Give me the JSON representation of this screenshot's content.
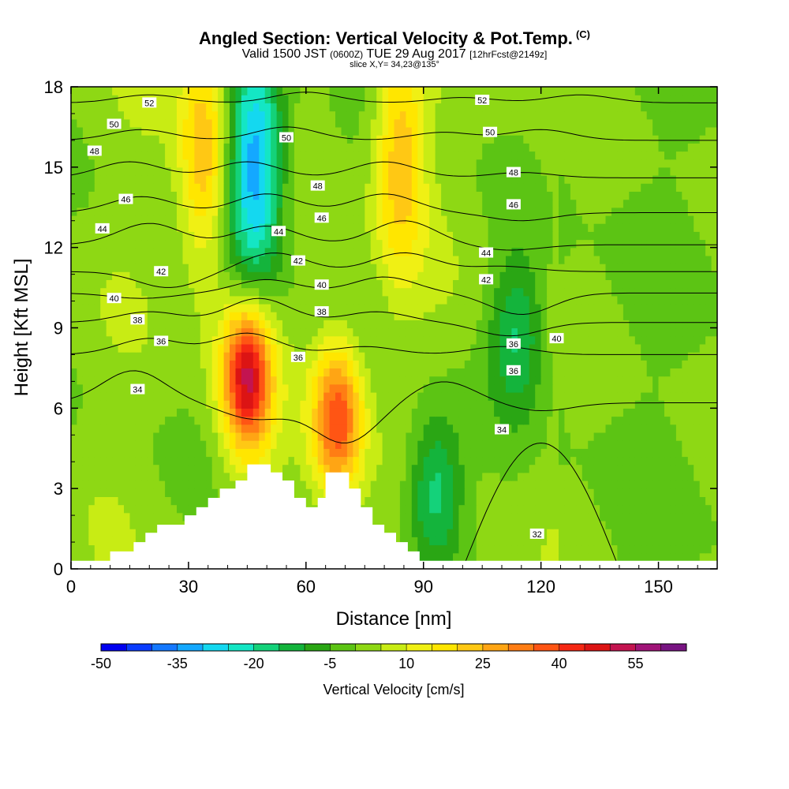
{
  "header": {
    "title": "Angled Section: Vertical Velocity & Pot.Temp.",
    "title_unit": "(C)",
    "valid_prefix": "Valid 1500 JST",
    "valid_utc": "(0600Z)",
    "valid_date": "TUE 29 Aug 2017",
    "forecast": "[12hrFcst@2149z]",
    "slice": "slice X,Y= 34,23@135°"
  },
  "chart_data": {
    "type": "heatmap",
    "xlabel": "Distance [nm]",
    "ylabel": "Height [Kft MSL]",
    "xlim": [
      0,
      165
    ],
    "ylim": [
      0,
      18
    ],
    "xticks": [
      0,
      30,
      60,
      90,
      120,
      150
    ],
    "yticks": [
      0,
      3,
      6,
      9,
      12,
      15,
      18
    ],
    "colorbar": {
      "label": "Vertical Velocity [cm/s]",
      "tick_labels": [
        "-50",
        "-35",
        "-20",
        "-5",
        "10",
        "25",
        "40",
        "55"
      ],
      "bounds": [
        -50,
        60
      ],
      "step": 5,
      "colors": [
        "#0000f0",
        "#0a3cff",
        "#1478ff",
        "#14a8ff",
        "#14d8f0",
        "#14e6c4",
        "#14d27a",
        "#14b43c",
        "#2aa614",
        "#5cc414",
        "#8ed814",
        "#c8ec14",
        "#f0f014",
        "#ffe600",
        "#ffc814",
        "#ffa514",
        "#ff7d14",
        "#ff5514",
        "#f52814",
        "#dc1414",
        "#c31450",
        "#a01478",
        "#781482"
      ]
    },
    "velocity_features": [
      {
        "kind": "updraft",
        "x": 45,
        "y": 7.2,
        "max_cm_s": 50
      },
      {
        "kind": "updraft",
        "x": 68,
        "y": 5.6,
        "max_cm_s": 40
      },
      {
        "kind": "updraft",
        "x": 34,
        "y": 15.5,
        "max_cm_s": 25
      },
      {
        "kind": "updraft",
        "x": 84,
        "y": 15.5,
        "max_cm_s": 25
      },
      {
        "kind": "downdraft",
        "x": 47,
        "y": 15,
        "min_cm_s": -35
      },
      {
        "kind": "downdraft",
        "x": 93,
        "y": 2.8,
        "min_cm_s": -20
      },
      {
        "kind": "downdraft",
        "x": 114,
        "y": 8.8,
        "min_cm_s": -15
      }
    ],
    "terrain_nm_kft": [
      [
        0,
        0.3
      ],
      [
        10,
        0.3
      ],
      [
        10,
        0.65
      ],
      [
        16,
        0.65
      ],
      [
        16,
        1
      ],
      [
        19,
        1
      ],
      [
        19,
        1.35
      ],
      [
        22,
        1.35
      ],
      [
        22,
        1.65
      ],
      [
        29,
        1.65
      ],
      [
        29,
        2
      ],
      [
        32,
        2
      ],
      [
        32,
        2.3
      ],
      [
        35,
        2.3
      ],
      [
        35,
        2.65
      ],
      [
        38,
        2.65
      ],
      [
        38,
        3
      ],
      [
        42,
        3
      ],
      [
        42,
        3.3
      ],
      [
        45,
        3.3
      ],
      [
        45,
        3.9
      ],
      [
        51,
        3.9
      ],
      [
        51,
        3.6
      ],
      [
        54,
        3.6
      ],
      [
        54,
        3.3
      ],
      [
        57,
        3.3
      ],
      [
        57,
        2.65
      ],
      [
        60,
        2.65
      ],
      [
        60,
        2.3
      ],
      [
        63,
        2.3
      ],
      [
        63,
        2.65
      ],
      [
        65,
        2.65
      ],
      [
        65,
        3.6
      ],
      [
        71,
        3.6
      ],
      [
        71,
        3
      ],
      [
        74,
        3
      ],
      [
        74,
        2.3
      ],
      [
        77,
        2.3
      ],
      [
        77,
        1.65
      ],
      [
        80,
        1.65
      ],
      [
        80,
        1.35
      ],
      [
        83,
        1.35
      ],
      [
        83,
        1
      ],
      [
        86,
        1
      ],
      [
        86,
        0.65
      ],
      [
        89,
        0.65
      ],
      [
        89,
        0.3
      ],
      [
        165,
        0.3
      ]
    ],
    "theta_contours": [
      {
        "theta": 32,
        "shape": "dome",
        "x0": 100,
        "x1": 140,
        "peak_kft": 4.7
      },
      {
        "theta": 34,
        "base_kft": 6.2,
        "amp": [
          [
            16,
            1.2
          ],
          [
            47,
            -0.6
          ],
          [
            70,
            -1.5
          ],
          [
            95,
            0.8
          ],
          [
            120,
            -0.3
          ]
        ]
      },
      {
        "theta": 36,
        "base_kft": 8.0,
        "amp": [
          [
            20,
            0.6
          ],
          [
            45,
            0.8
          ],
          [
            75,
            0.3
          ],
          [
            110,
            0.3
          ]
        ]
      },
      {
        "theta": 38,
        "base_kft": 9.2,
        "amp": [
          [
            20,
            0.4
          ],
          [
            48,
            0.9
          ],
          [
            78,
            0.4
          ],
          [
            112,
            -0.5
          ]
        ]
      },
      {
        "theta": 40,
        "base_kft": 10.3,
        "amp": [
          [
            18,
            -0.2
          ],
          [
            50,
            0.5
          ],
          [
            80,
            0.6
          ],
          [
            115,
            -0.8
          ]
        ]
      },
      {
        "theta": 42,
        "base_kft": 11.1,
        "amp": [
          [
            25,
            -0.6
          ],
          [
            52,
            0.7
          ],
          [
            85,
            0.7
          ],
          [
            110,
            0.2
          ]
        ]
      },
      {
        "theta": 44,
        "base_kft": 12.1,
        "amp": [
          [
            20,
            0.8
          ],
          [
            50,
            0.7
          ],
          [
            85,
            0.9
          ],
          [
            112,
            -0.2
          ]
        ]
      },
      {
        "theta": 46,
        "base_kft": 13.3,
        "amp": [
          [
            18,
            0.6
          ],
          [
            50,
            0.7
          ],
          [
            80,
            0.7
          ],
          [
            115,
            -0.3
          ]
        ]
      },
      {
        "theta": 48,
        "base_kft": 14.6,
        "amp": [
          [
            15,
            0.6
          ],
          [
            45,
            0.6
          ],
          [
            80,
            0.6
          ],
          [
            115,
            0.2
          ]
        ]
      },
      {
        "theta": 50,
        "base_kft": 16.0,
        "amp": [
          [
            18,
            0.4
          ],
          [
            55,
            0.5
          ],
          [
            95,
            0.3
          ],
          [
            120,
            0.4
          ]
        ]
      },
      {
        "theta": 52,
        "base_kft": 17.4,
        "amp": [
          [
            20,
            0.3
          ],
          [
            60,
            0.4
          ],
          [
            100,
            0.2
          ],
          [
            130,
            0.3
          ]
        ]
      }
    ],
    "contour_labels": [
      {
        "text": "52",
        "x": 20,
        "y": 17.4
      },
      {
        "text": "50",
        "x": 11,
        "y": 16.6
      },
      {
        "text": "48",
        "x": 6,
        "y": 15.6
      },
      {
        "text": "46",
        "x": 14,
        "y": 13.8
      },
      {
        "text": "44",
        "x": 8,
        "y": 12.7
      },
      {
        "text": "42",
        "x": 23,
        "y": 11.1
      },
      {
        "text": "40",
        "x": 11,
        "y": 10.1
      },
      {
        "text": "38",
        "x": 17,
        "y": 9.3
      },
      {
        "text": "36",
        "x": 23,
        "y": 8.5
      },
      {
        "text": "34",
        "x": 17,
        "y": 6.7
      },
      {
        "text": "50",
        "x": 55,
        "y": 16.1
      },
      {
        "text": "48",
        "x": 63,
        "y": 14.3
      },
      {
        "text": "46",
        "x": 64,
        "y": 13.1
      },
      {
        "text": "44",
        "x": 53,
        "y": 12.6
      },
      {
        "text": "42",
        "x": 58,
        "y": 11.5
      },
      {
        "text": "40",
        "x": 64,
        "y": 10.6
      },
      {
        "text": "38",
        "x": 64,
        "y": 9.6
      },
      {
        "text": "36",
        "x": 58,
        "y": 7.9
      },
      {
        "text": "52",
        "x": 105,
        "y": 17.5
      },
      {
        "text": "50",
        "x": 107,
        "y": 16.3
      },
      {
        "text": "48",
        "x": 113,
        "y": 14.8
      },
      {
        "text": "46",
        "x": 113,
        "y": 13.6
      },
      {
        "text": "44",
        "x": 106,
        "y": 11.8
      },
      {
        "text": "42",
        "x": 106,
        "y": 10.8
      },
      {
        "text": "40",
        "x": 124,
        "y": 8.6
      },
      {
        "text": "36",
        "x": 113,
        "y": 8.4
      },
      {
        "text": "36",
        "x": 113,
        "y": 7.4
      },
      {
        "text": "34",
        "x": 110,
        "y": 5.2
      },
      {
        "text": "32",
        "x": 119,
        "y": 1.3
      }
    ]
  }
}
